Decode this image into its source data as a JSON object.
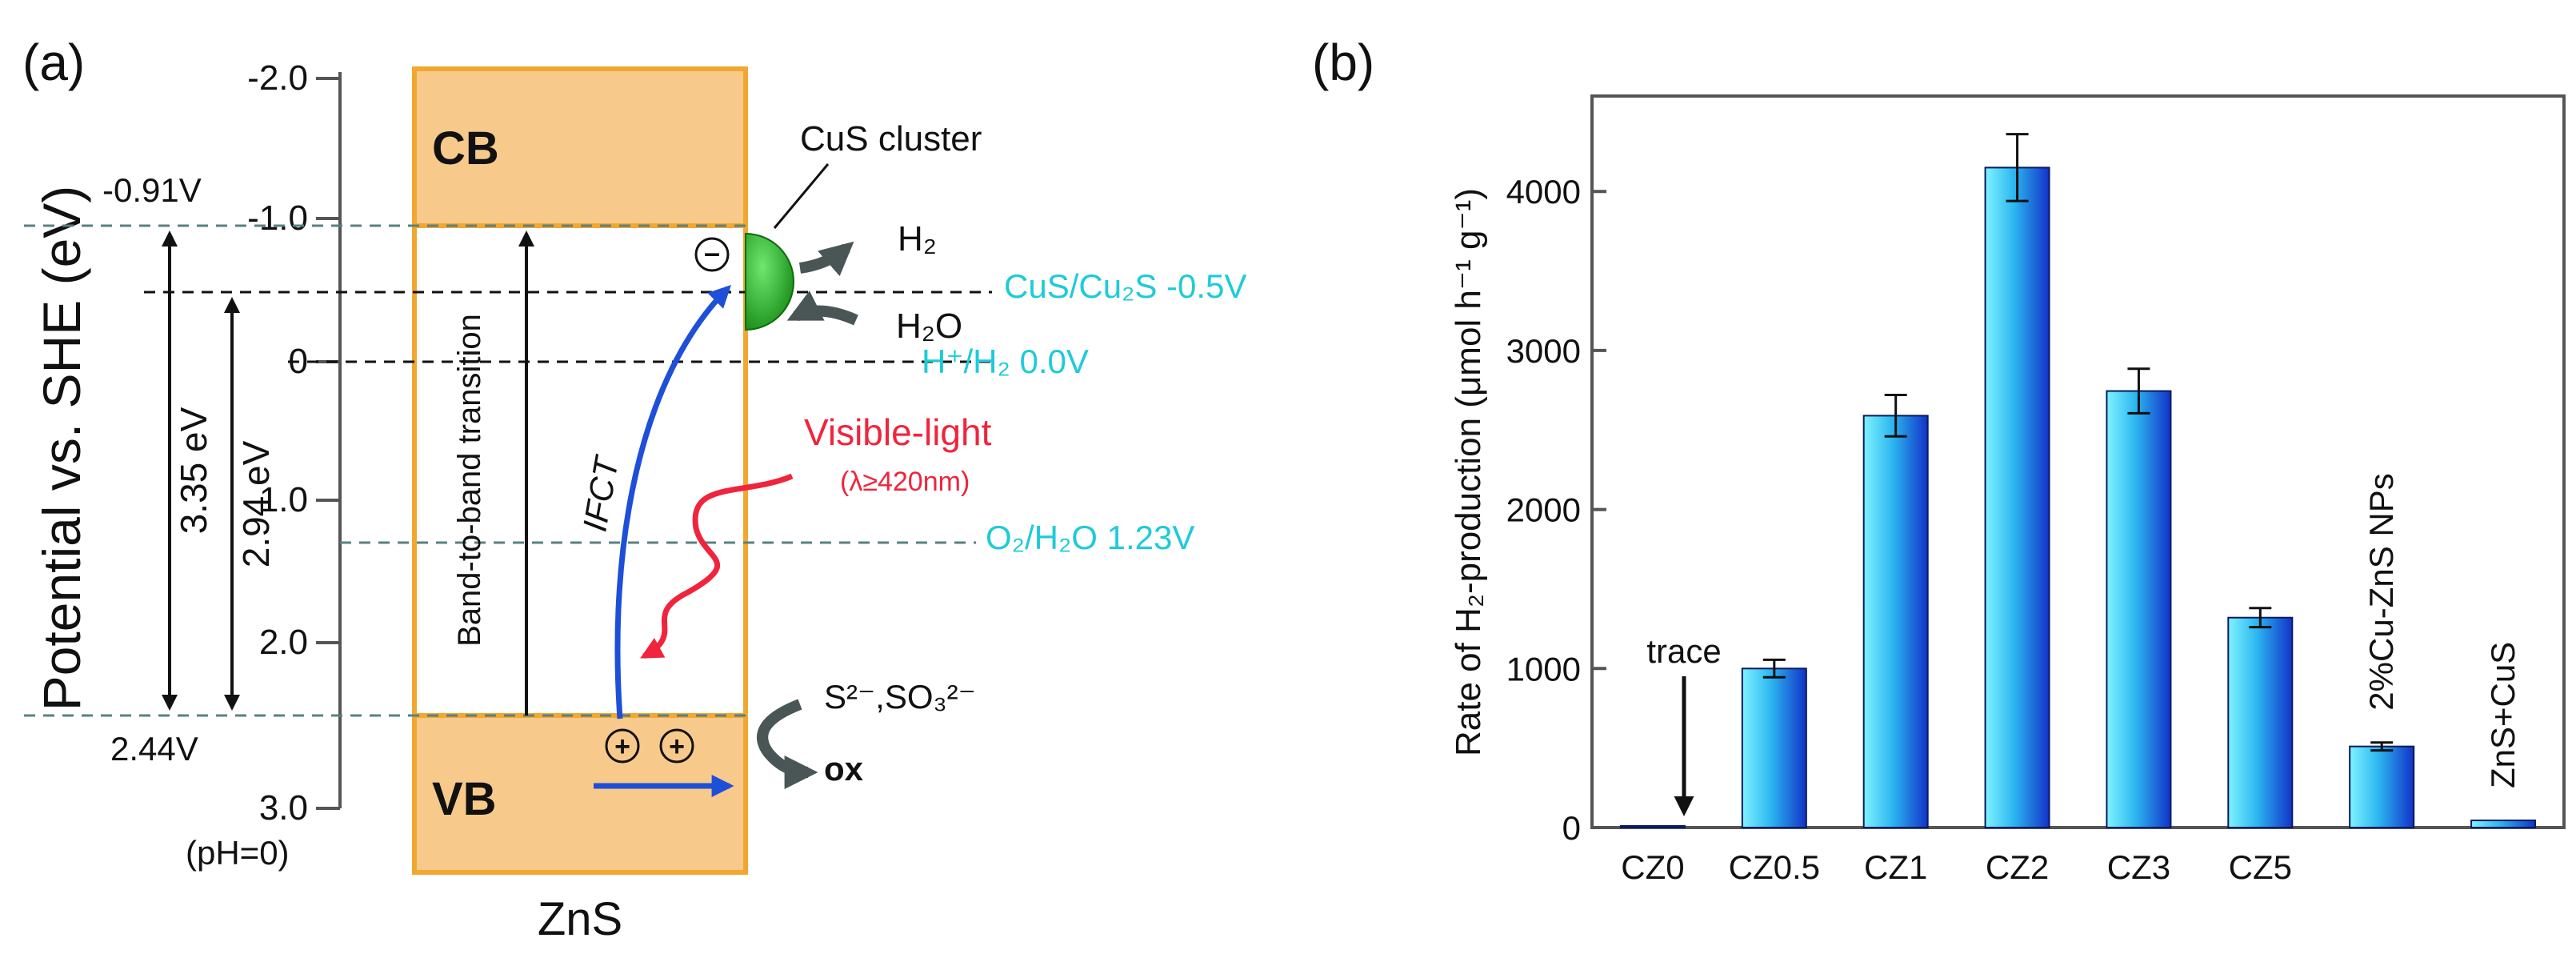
{
  "panel_a": {
    "label": "(a)",
    "ylabel": "Potential vs. SHE (eV)",
    "ticks": [
      "-2.0",
      "-1.0",
      "0",
      "1.0",
      "2.0",
      "3.0"
    ],
    "ph_note": "(pH=0)",
    "material": "ZnS",
    "cb_label": "CB",
    "vb_label": "VB",
    "cb_edge": "-0.91V",
    "vb_edge": "2.44V",
    "band_gap": "3.35 eV",
    "ifct_gap": "2.94 eV",
    "transition": "Band-to-band transition",
    "ifct": "IFCT",
    "cluster": "CuS cluster",
    "electron": "⊖",
    "hole": "⊕",
    "h2": "H₂",
    "h2o": "H₂O",
    "cus_level": "CuS/Cu₂S -0.5V",
    "h_level": "H⁺/H₂ 0.0V",
    "o2_level": "O₂/H₂O 1.23V",
    "visible": "Visible-light",
    "wavelength": "(λ≥420nm)",
    "sacrificial": "S²⁻,SO₃²⁻",
    "ox": "ox",
    "colors": {
      "band": "#f7c98b",
      "band_edge": "#f0a830",
      "level": "#1ecbd8",
      "light": "#f0243c",
      "arrow": "#1e4fd8",
      "cluster": "#2fae2f"
    }
  },
  "panel_b": {
    "label": "(b)"
  },
  "chart_data": {
    "type": "bar",
    "title": "",
    "xlabel": "",
    "ylabel": "Rate of H₂-production (μmol h⁻¹ g⁻¹)",
    "categories": [
      "CZ0",
      "CZ0.5",
      "CZ1",
      "CZ2",
      "CZ3",
      "CZ5",
      "2%Cu-ZnS NPs",
      "ZnS+CuS"
    ],
    "values": [
      10,
      1000,
      2590,
      4150,
      2745,
      1320,
      510,
      45
    ],
    "errors": [
      0,
      55,
      130,
      210,
      140,
      60,
      25,
      0
    ],
    "ylim": [
      0,
      4600
    ],
    "yticks": [
      0,
      1000,
      2000,
      3000,
      4000
    ],
    "annotation": "trace",
    "tick_labels": [
      "CZ0",
      "CZ0.5",
      "CZ1",
      "CZ2",
      "CZ3",
      "CZ5"
    ],
    "rotated_labels": [
      "2%Cu-ZnS NPs",
      "ZnS+CuS"
    ]
  }
}
